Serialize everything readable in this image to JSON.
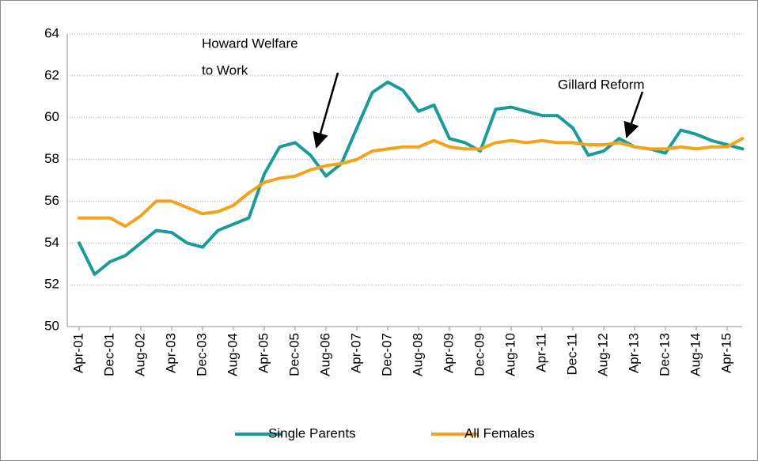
{
  "chart_data": {
    "type": "line",
    "categories": [
      "Apr-01",
      null,
      "Dec-01",
      null,
      "Aug-02",
      null,
      "Apr-03",
      null,
      "Dec-03",
      null,
      "Aug-04",
      null,
      "Apr-05",
      null,
      "Dec-05",
      null,
      "Aug-06",
      null,
      "Apr-07",
      null,
      "Dec-07",
      null,
      "Aug-08",
      null,
      "Apr-09",
      null,
      "Dec-09",
      null,
      "Aug-10",
      null,
      "Apr-11",
      null,
      "Dec-11",
      null,
      "Aug-12",
      null,
      "Apr-13",
      null,
      "Dec-13",
      null,
      "Aug-14",
      null,
      "Apr-15",
      null
    ],
    "series": [
      {
        "name": "Single Parents",
        "color": "#1b9a9a",
        "values": [
          54.0,
          52.5,
          53.1,
          53.4,
          54.0,
          54.6,
          54.5,
          54.0,
          53.8,
          54.6,
          54.9,
          55.2,
          57.3,
          58.6,
          58.8,
          58.2,
          57.2,
          57.8,
          59.5,
          61.2,
          61.7,
          61.3,
          60.3,
          60.6,
          59.0,
          58.8,
          58.4,
          60.4,
          60.5,
          60.3,
          60.1,
          60.1,
          59.5,
          58.2,
          58.4,
          59.0,
          58.6,
          58.5,
          58.3,
          59.4,
          59.2,
          58.9,
          58.7,
          58.5
        ]
      },
      {
        "name": "All Females",
        "color": "#f5a21b",
        "values": [
          55.2,
          55.2,
          55.2,
          54.8,
          55.3,
          56.0,
          56.0,
          55.7,
          55.4,
          55.5,
          55.8,
          56.4,
          56.9,
          57.1,
          57.2,
          57.5,
          57.7,
          57.8,
          58.0,
          58.4,
          58.5,
          58.6,
          58.6,
          58.9,
          58.6,
          58.5,
          58.5,
          58.8,
          58.9,
          58.8,
          58.9,
          58.8,
          58.8,
          58.7,
          58.7,
          58.8,
          58.6,
          58.5,
          58.5,
          58.6,
          58.5,
          58.6,
          58.6,
          59.0
        ]
      }
    ],
    "ylim": [
      50,
      64
    ],
    "yticks": [
      50,
      52,
      54,
      56,
      58,
      60,
      62,
      64
    ],
    "grid": true,
    "legend": "bottom",
    "annotations": [
      {
        "lines": [
          "Howard Welfare",
          "to Work"
        ]
      },
      {
        "lines": [
          "Gillard Reform"
        ]
      }
    ]
  }
}
